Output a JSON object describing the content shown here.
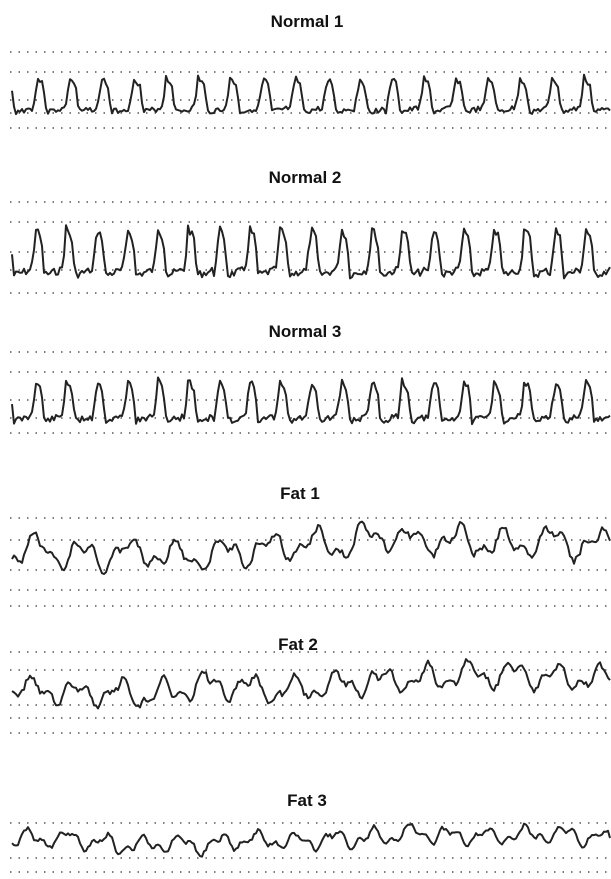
{
  "panels": [
    {
      "title": "Normal 1"
    },
    {
      "title": "Normal 2"
    },
    {
      "title": "Normal 3"
    },
    {
      "title": "Fat 1"
    },
    {
      "title": "Fat 2"
    },
    {
      "title": "Fat 3"
    }
  ]
}
